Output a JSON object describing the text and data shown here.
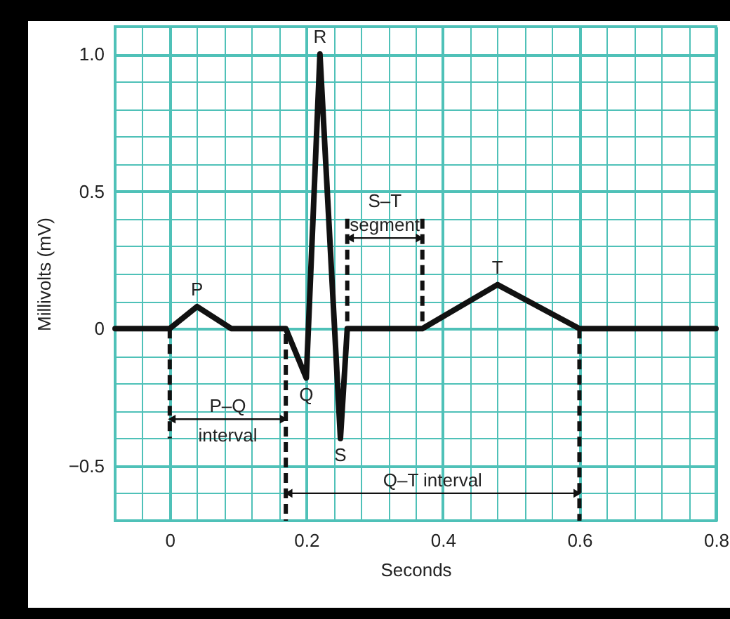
{
  "chart_data": {
    "type": "line",
    "xlabel": "Seconds",
    "ylabel": "Millivolts (mV)",
    "xlim": [
      -0.08,
      0.8
    ],
    "ylim": [
      -0.7,
      1.1
    ],
    "xticks": [
      {
        "value": -0.08,
        "label": null
      },
      {
        "value": -0.04,
        "label": null
      },
      0,
      {
        "value": 0.04,
        "label": null
      },
      {
        "value": 0.08,
        "label": null
      },
      {
        "value": 0.12,
        "label": null
      },
      {
        "value": 0.16,
        "label": null
      },
      0.2,
      {
        "value": 0.24,
        "label": null
      },
      {
        "value": 0.28,
        "label": null
      },
      {
        "value": 0.32,
        "label": null
      },
      {
        "value": 0.36,
        "label": null
      },
      0.4,
      {
        "value": 0.44,
        "label": null
      },
      {
        "value": 0.48,
        "label": null
      },
      {
        "value": 0.52,
        "label": null
      },
      {
        "value": 0.56,
        "label": null
      },
      0.6,
      {
        "value": 0.64,
        "label": null
      },
      {
        "value": 0.68,
        "label": null
      },
      {
        "value": 0.72,
        "label": null
      },
      {
        "value": 0.76,
        "label": null
      },
      0.8
    ],
    "yticks": [
      {
        "value": -0.7,
        "label": null
      },
      {
        "value": -0.6,
        "label": null
      },
      {
        "value": -0.5,
        "label": "−0.5"
      },
      {
        "value": -0.4,
        "label": null
      },
      {
        "value": -0.3,
        "label": null
      },
      {
        "value": -0.2,
        "label": null
      },
      {
        "value": -0.1,
        "label": null
      },
      0,
      {
        "value": 0.1,
        "label": null
      },
      {
        "value": 0.2,
        "label": null
      },
      {
        "value": 0.3,
        "label": null
      },
      {
        "value": 0.4,
        "label": null
      },
      0.5,
      {
        "value": 0.6,
        "label": null
      },
      {
        "value": 0.7,
        "label": null
      },
      {
        "value": 0.8,
        "label": null
      },
      {
        "value": 0.9,
        "label": null
      },
      {
        "value": 1,
        "label": "1.0"
      },
      {
        "value": 1.1,
        "label": null
      }
    ],
    "grid": true,
    "series": [
      {
        "color": "#111111",
        "x": [
          -0.08,
          0,
          0.04,
          0.09,
          0.17,
          0.2,
          0.22,
          0.25,
          0.26,
          0.37,
          0.48,
          0.6,
          0.8
        ],
        "values": [
          0,
          0,
          0.08,
          0,
          0,
          -0.18,
          1.0,
          -0.4,
          0,
          0,
          0.16,
          0,
          0
        ]
      },
      {
        "color": "#111111",
        "line_style": "dashed",
        "x": [
          0,
          0
        ],
        "values": [
          0,
          -0.4
        ]
      },
      {
        "color": "#111111",
        "line_style": "dashed",
        "x": [
          0.17,
          0.17
        ],
        "values": [
          -0.02,
          -0.7
        ]
      },
      {
        "color": "#111111",
        "line_style": "dashed",
        "x": [
          0.26,
          0.26
        ],
        "values": [
          0.4,
          0
        ]
      },
      {
        "color": "#111111",
        "line_style": "dashed",
        "x": [
          0.37,
          0.37
        ],
        "values": [
          0.4,
          0.02
        ]
      },
      {
        "color": "#111111",
        "line_style": "dashed",
        "x": [
          0.6,
          0.6
        ],
        "values": [
          0,
          -0.7
        ]
      },
      {
        "color": "#111111",
        "marker": "triangle",
        "x": [
          0.003,
          0.085,
          0.167
        ],
        "values": [
          -0.33,
          -0.33,
          -0.33
        ]
      },
      {
        "color": "#111111",
        "marker": "triangle",
        "x": [
          0.264,
          0.315,
          0.366
        ],
        "values": [
          0.33,
          0.33,
          0.33
        ]
      },
      {
        "color": "#111111",
        "marker": "triangle",
        "x": [
          0.174,
          0.385,
          0.597
        ],
        "values": [
          -0.6,
          -0.6,
          -0.6
        ]
      }
    ],
    "annotations": [
      {
        "text": "P",
        "x": 0.04,
        "y": 0.08
      },
      {
        "text": "Q",
        "x": 0.2,
        "y": -0.18
      },
      {
        "text": "R",
        "x": 0.22,
        "y": 1.0
      },
      {
        "text": "S",
        "x": 0.25,
        "y": -0.4
      },
      {
        "text": "T",
        "x": 0.48,
        "y": 0.16
      },
      {
        "text": "P–Q",
        "x": 0.085,
        "y": -0.33
      },
      "interval",
      "S–T",
      {
        "text": "segment",
        "x": 0.315,
        "y": 0.33
      },
      {
        "text": "Q–T interval",
        "x": 0.385,
        "y": -0.6
      }
    ]
  }
}
